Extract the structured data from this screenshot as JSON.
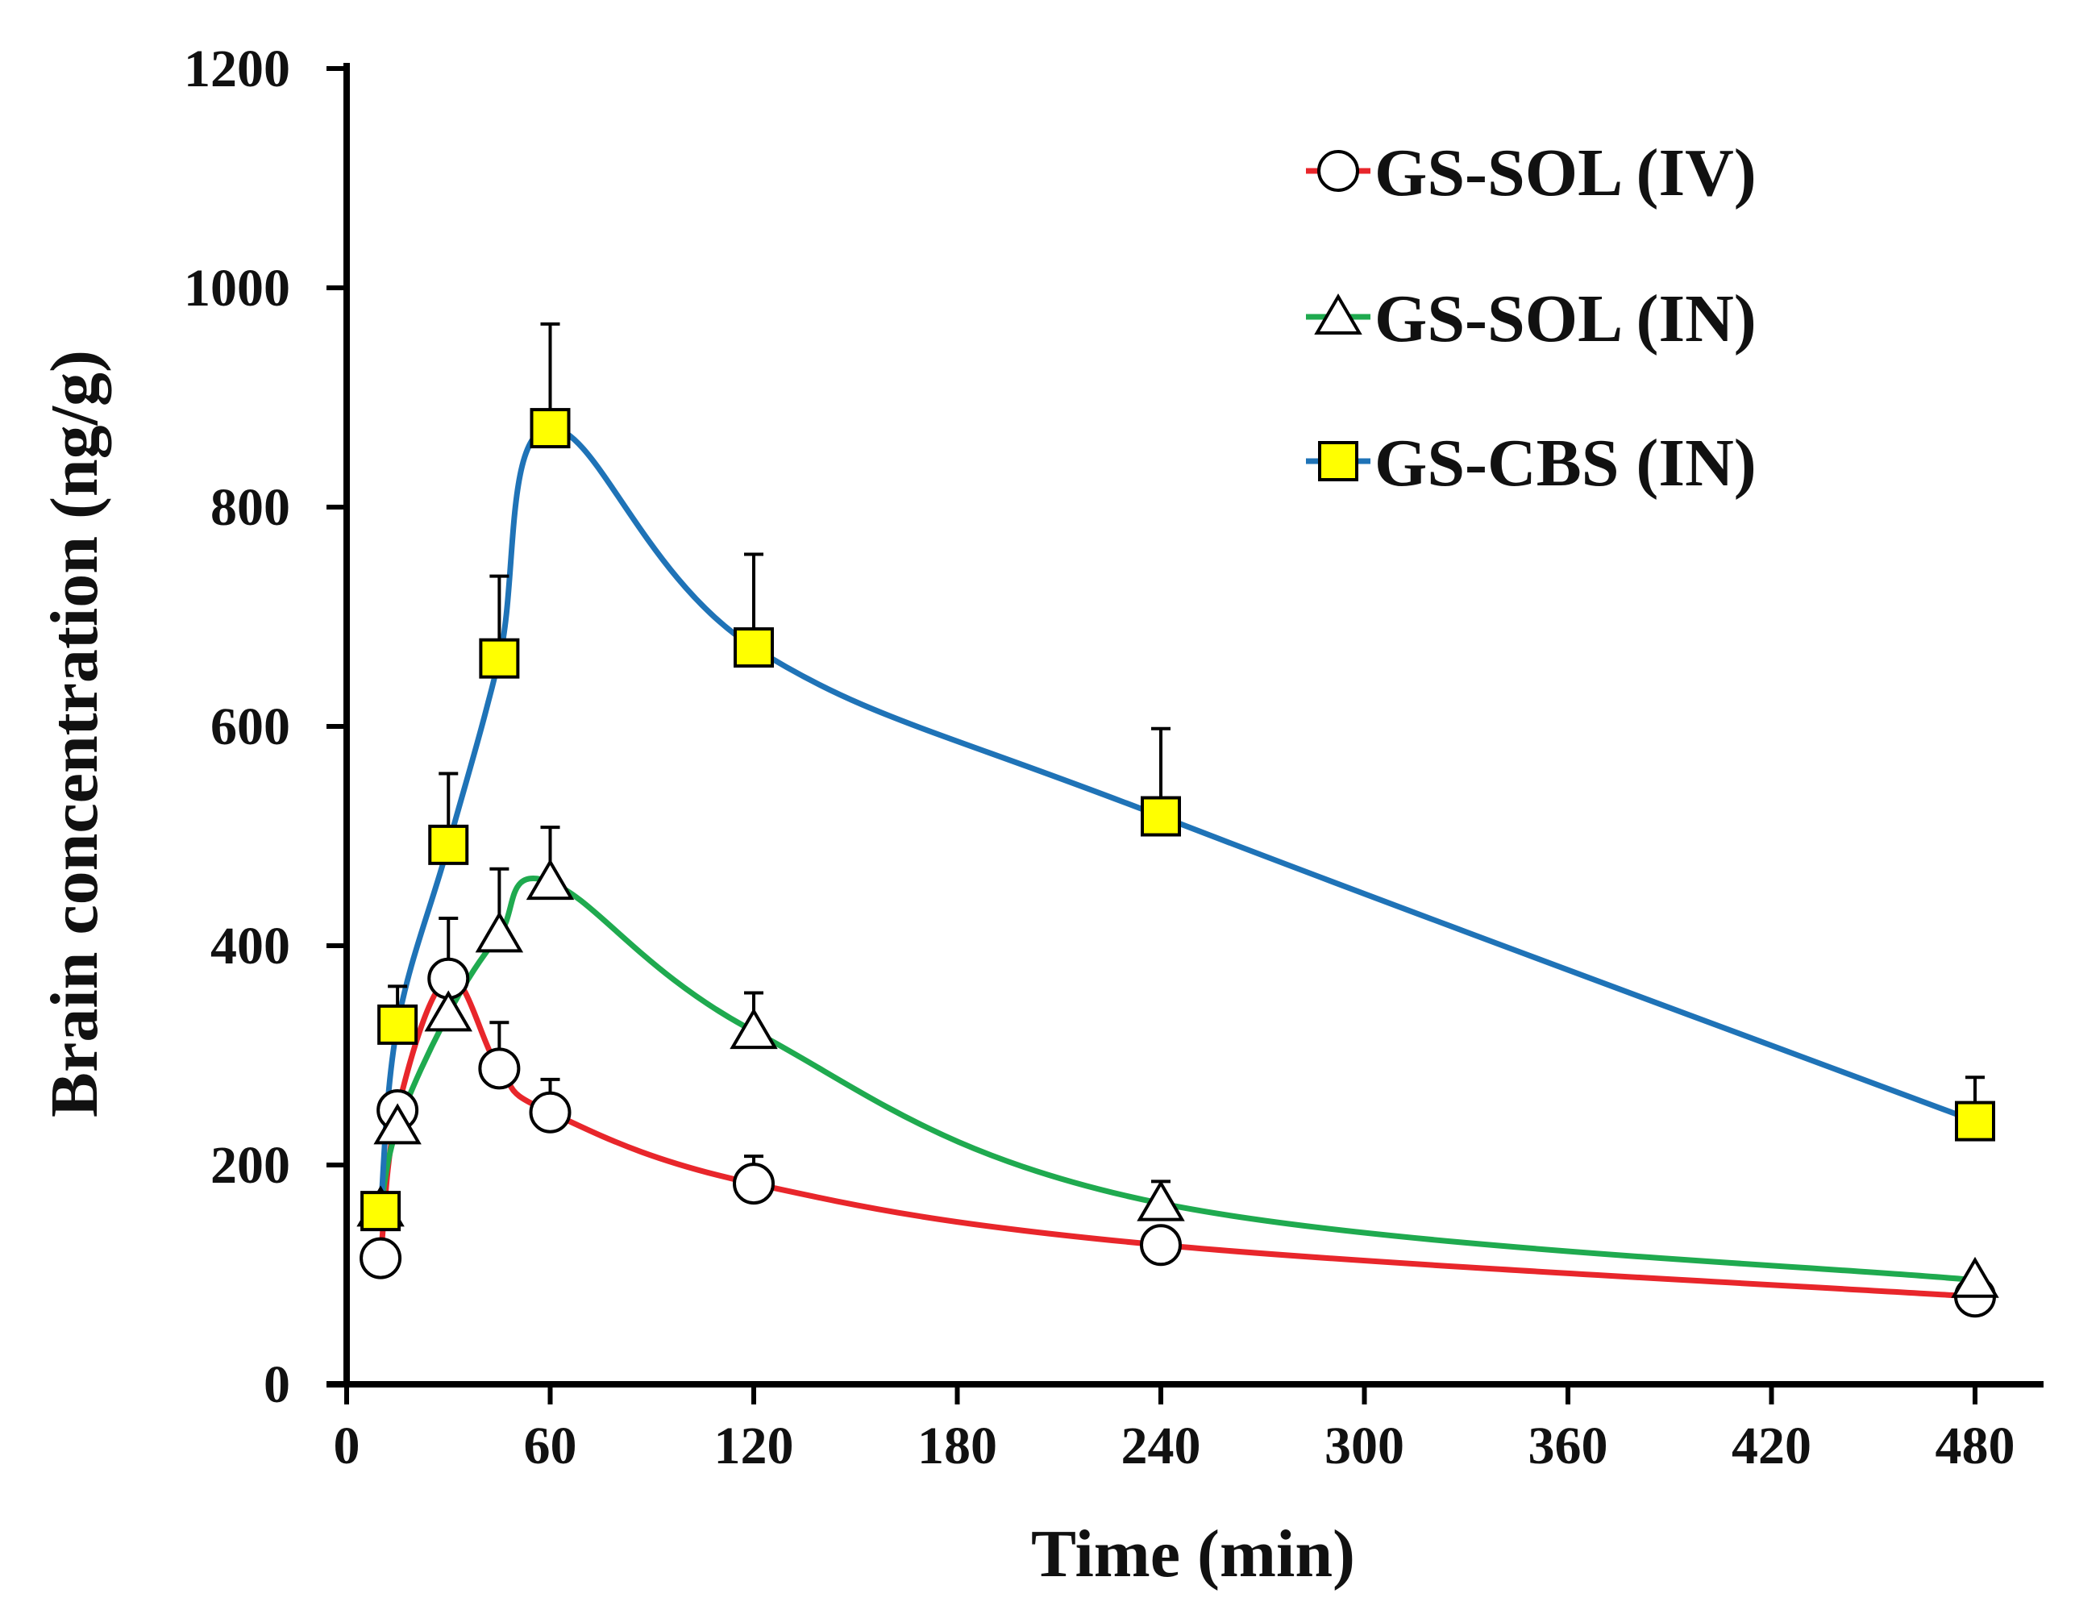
{
  "chart_data": {
    "type": "line",
    "title": "",
    "xlabel": "Time (min)",
    "ylabel": "Brain concentration (ng/g)",
    "xlim": [
      0,
      480
    ],
    "ylim": [
      0,
      1200
    ],
    "xticks": [
      0,
      60,
      120,
      180,
      240,
      300,
      360,
      420,
      480
    ],
    "yticks": [
      0,
      200,
      400,
      600,
      800,
      1000,
      1200
    ],
    "grid": false,
    "legend_position": "top-right",
    "series": [
      {
        "name": "GS-SOL (IV)",
        "marker": "circle",
        "color": "#e8262b",
        "marker_fill": "#ffffff",
        "x": [
          10,
          15,
          30,
          45,
          60,
          120,
          240,
          480
        ],
        "y": [
          115,
          250,
          370,
          288,
          248,
          183,
          127,
          80
        ],
        "error": [
          0,
          0,
          55,
          42,
          30,
          25,
          0,
          0
        ]
      },
      {
        "name": "GS-SOL (IN)",
        "marker": "triangle",
        "color": "#1faa4f",
        "marker_fill": "#ffffff",
        "x": [
          10,
          15,
          30,
          45,
          60,
          120,
          240,
          480
        ],
        "y": [
          160,
          235,
          338,
          410,
          458,
          322,
          165,
          95
        ],
        "error": [
          0,
          0,
          0,
          60,
          50,
          35,
          20,
          0
        ]
      },
      {
        "name": "GS-CBS (IN)",
        "marker": "square",
        "color": "#1f73b7",
        "marker_fill": "#ffff00",
        "x": [
          10,
          15,
          30,
          45,
          60,
          120,
          240,
          480
        ],
        "y": [
          158,
          328,
          492,
          662,
          872,
          672,
          518,
          240
        ],
        "error": [
          0,
          35,
          65,
          75,
          95,
          85,
          80,
          40
        ]
      }
    ]
  }
}
